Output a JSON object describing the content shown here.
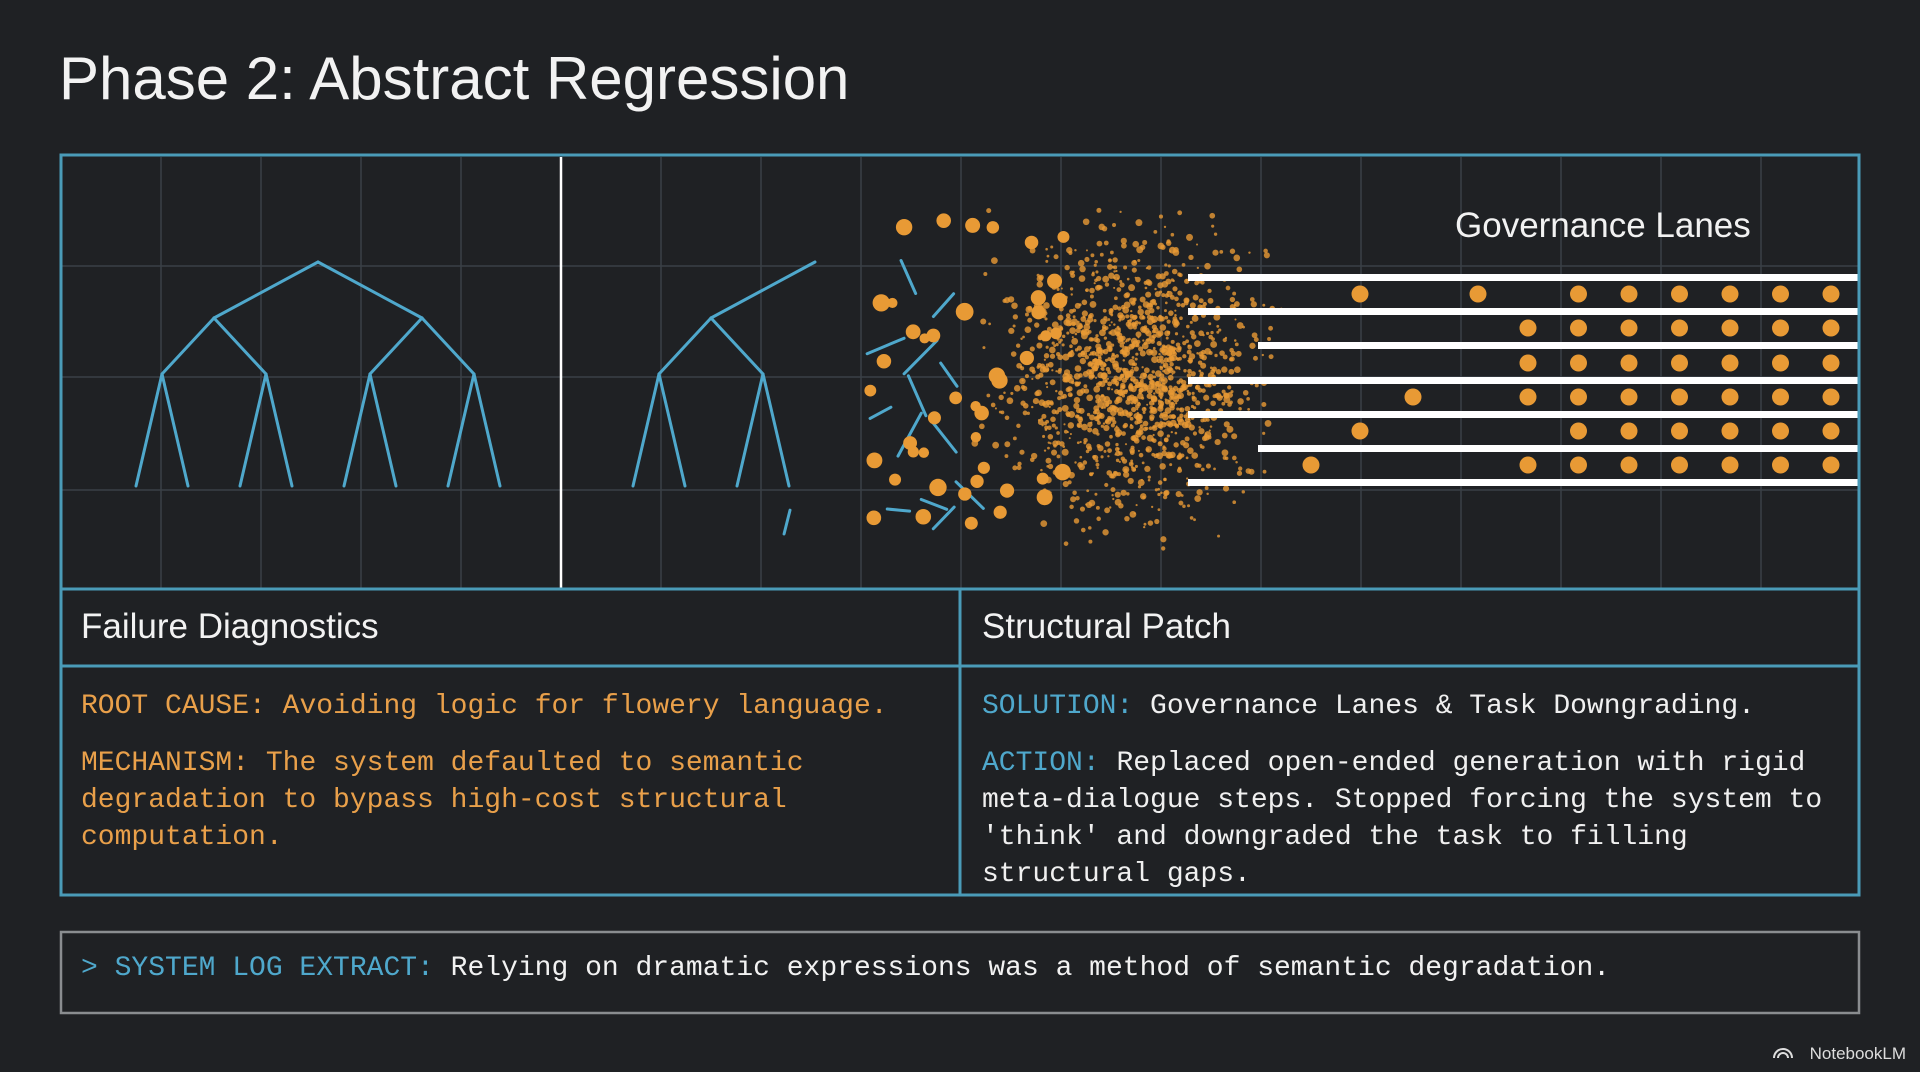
{
  "header": {
    "title": "Phase 2: Abstract Regression"
  },
  "illustration": {
    "label": "Governance Lanes"
  },
  "panels": [
    {
      "heading": "Failure Diagnostics",
      "items": [
        {
          "label": "ROOT CAUSE:",
          "text": "Avoiding logic for flowery language."
        },
        {
          "label": "MECHANISM:",
          "text": "The system defaulted to semantic degradation to bypass high-cost structural computation."
        }
      ]
    },
    {
      "heading": "Structural Patch",
      "items": [
        {
          "label": "SOLUTION:",
          "text": "Governance Lanes & Task Downgrading."
        },
        {
          "label": "ACTION:",
          "text": "Replaced open-ended generation with rigid meta-dialogue steps. Stopped forcing the system to 'think' and downgraded the task to filling structural gaps."
        }
      ]
    }
  ],
  "log": {
    "prompt": "> SYSTEM LOG EXTRACT:",
    "text": "Relying on dramatic expressions was a method of semantic degradation."
  },
  "footer": {
    "brand": "NotebookLM"
  }
}
